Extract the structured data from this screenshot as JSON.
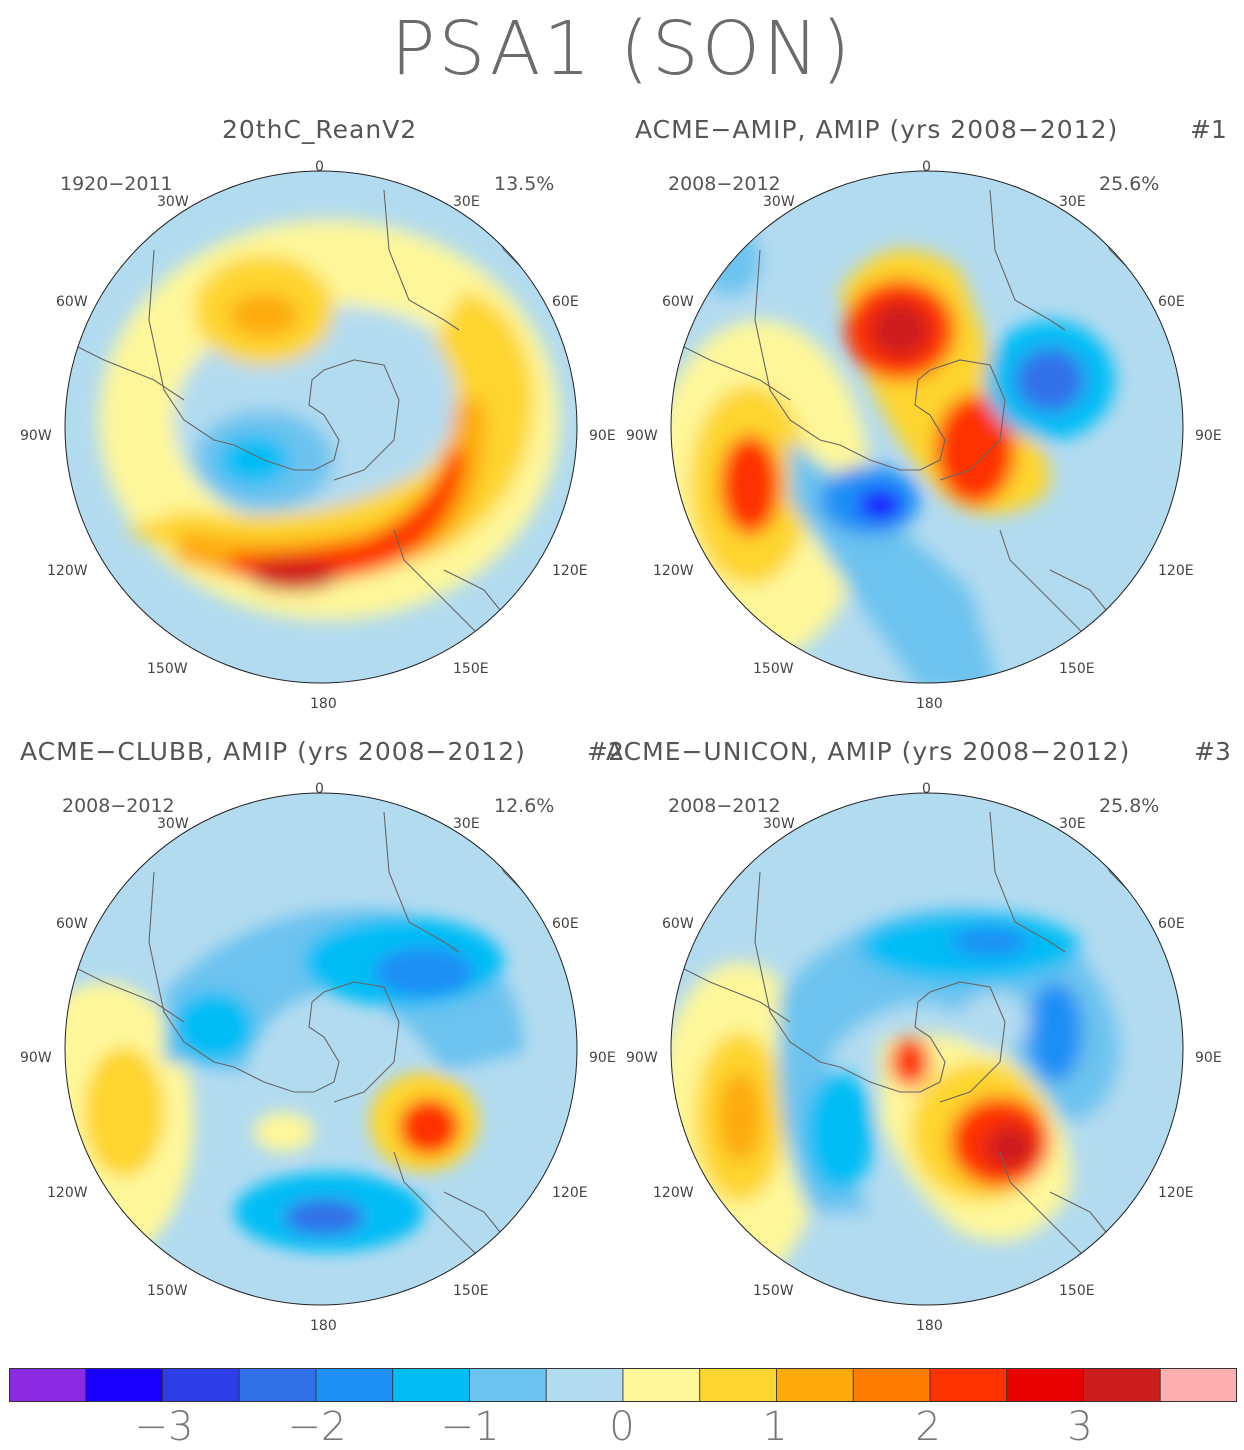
{
  "title": "PSA1 (SON)",
  "panels": [
    {
      "title": "20thC_ReanV2",
      "number": "",
      "years": "1920-2011",
      "percent": "13.5%"
    },
    {
      "title": "ACME-AMIP, AMIP (yrs 2008-2012)",
      "number": "#1",
      "years": "2008-2012",
      "percent": "25.6%"
    },
    {
      "title": "ACME-CLUBB, AMIP (yrs 2008-2012)",
      "number": "#2",
      "years": "2008-2012",
      "percent": "12.6%"
    },
    {
      "title": "ACME-UNICON, AMIP (yrs 2008-2012)",
      "number": "#3",
      "years": "2008-2012",
      "percent": "25.8%"
    }
  ],
  "longitude_labels": {
    "top": "0",
    "n30w": "30W",
    "n30e": "30E",
    "w60": "60W",
    "e60": "60E",
    "w90": "90W",
    "e90": "90E",
    "w120": "120W",
    "e120": "120E",
    "w150": "150W",
    "e150": "150E",
    "bottom": "180"
  },
  "colorbar": {
    "colors": [
      "#8a2be2",
      "#1a00ff",
      "#2d3ee6",
      "#3071e8",
      "#1e8ff5",
      "#02bdf5",
      "#6cc3ef",
      "#b2dbf0",
      "#fef79a",
      "#fdd52f",
      "#fdaa0a",
      "#fe7c00",
      "#fe3100",
      "#e90000",
      "#cd1e1e",
      "#feb0b0"
    ],
    "labels": [
      "-3",
      "-2",
      "-1",
      "0",
      "1",
      "2",
      "3"
    ]
  },
  "coast_color": "#666666"
}
